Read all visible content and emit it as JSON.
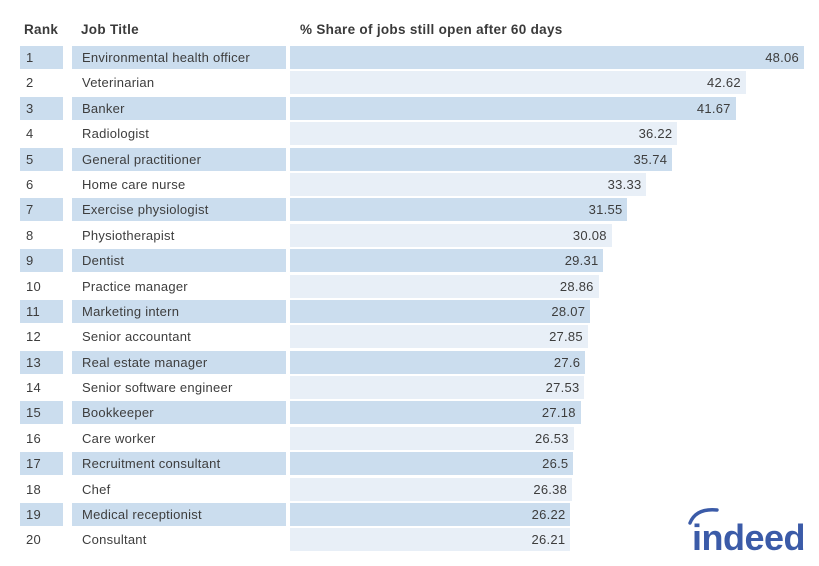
{
  "table": {
    "headers": {
      "rank": "Rank",
      "job_title": "Job Title",
      "value": "% Share of jobs still open after 60 days"
    }
  },
  "chart_data": {
    "type": "bar",
    "orientation": "horizontal",
    "title": "% Share of jobs still open after 60 days",
    "xlabel": "% Share of jobs still open after 60 days",
    "ylabel": "Job Title",
    "xlim": [
      0,
      48.06
    ],
    "value_labels": "inside-right",
    "grid": false,
    "legend": false,
    "rows": [
      {
        "rank": 1,
        "job": "Environmental health officer",
        "value": 48.06
      },
      {
        "rank": 2,
        "job": "Veterinarian",
        "value": 42.62
      },
      {
        "rank": 3,
        "job": "Banker",
        "value": 41.67
      },
      {
        "rank": 4,
        "job": "Radiologist",
        "value": 36.22
      },
      {
        "rank": 5,
        "job": "General practitioner",
        "value": 35.74
      },
      {
        "rank": 6,
        "job": "Home care nurse",
        "value": 33.33
      },
      {
        "rank": 7,
        "job": "Exercise physiologist",
        "value": 31.55
      },
      {
        "rank": 8,
        "job": "Physiotherapist",
        "value": 30.08
      },
      {
        "rank": 9,
        "job": "Dentist",
        "value": 29.31
      },
      {
        "rank": 10,
        "job": "Practice manager",
        "value": 28.86
      },
      {
        "rank": 11,
        "job": "Marketing intern",
        "value": 28.07
      },
      {
        "rank": 12,
        "job": "Senior accountant",
        "value": 27.85
      },
      {
        "rank": 13,
        "job": "Real estate manager",
        "value": 27.6
      },
      {
        "rank": 14,
        "job": "Senior software engineer",
        "value": 27.53
      },
      {
        "rank": 15,
        "job": "Bookkeeper",
        "value": 27.18
      },
      {
        "rank": 16,
        "job": "Care worker",
        "value": 26.53
      },
      {
        "rank": 17,
        "job": "Recruitment consultant",
        "value": 26.5
      },
      {
        "rank": 18,
        "job": "Chef",
        "value": 26.38
      },
      {
        "rank": 19,
        "job": "Medical receptionist",
        "value": 26.22
      },
      {
        "rank": 20,
        "job": "Consultant",
        "value": 26.21
      }
    ],
    "colors": {
      "odd_row": "#cbddee",
      "even_row": "#e8eff7",
      "text": "#3d3d3d"
    }
  },
  "logo": {
    "text": "indeed",
    "color": "#3b5ba8"
  }
}
